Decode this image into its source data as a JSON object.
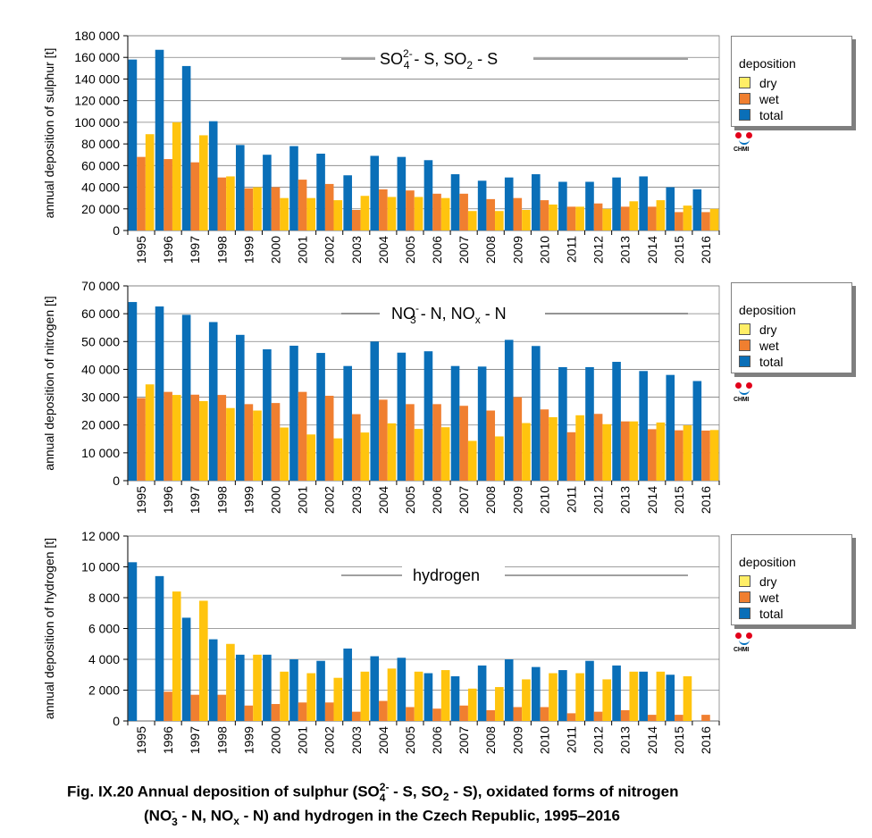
{
  "caption": {
    "line1_a": "Fig. IX.20  Annual deposition of sulphur (SO",
    "so4_sub": "4",
    "so4_sup": "2-",
    "line1_b": " - S, SO",
    "so2_sub": "2",
    "line1_c": " - S), oxidated forms of nitrogen",
    "line2_a": "(NO",
    "no3_sub": "3",
    "no3_sup": "-",
    "line2_b": " - N, NO",
    "nox_sub": "x",
    "line2_c": " - N) and hydrogen in the Czech Republic, 1995–2016"
  },
  "legend": {
    "title": "deposition",
    "items": [
      {
        "label": "dry",
        "color": "#ffee66"
      },
      {
        "label": "wet",
        "color": "#f07f30"
      },
      {
        "label": "total",
        "color": "#0a6fb8"
      }
    ]
  },
  "logo_text": "CHMI",
  "colors": {
    "total": "#0a6fb8",
    "wet": "#f07f30",
    "dry": "#ffc40e",
    "axis": "#000000",
    "grid": "#7f7f7f"
  },
  "chart_data": [
    {
      "type": "bar",
      "ylabel": "annual deposition of sulphur [t]",
      "title_parts": [
        "SO",
        "4",
        "2-",
        " - S, SO",
        "2",
        " - S"
      ],
      "ylim": [
        0,
        180000
      ],
      "yticks": [
        "0",
        "20 000",
        "40 000",
        "60 000",
        "80 000",
        "100 000",
        "120 000",
        "140 000",
        "160 000",
        "180 000"
      ],
      "grid": true,
      "legend_position": "right",
      "categories": [
        "1995",
        "1996",
        "1997",
        "1998",
        "1999",
        "2000",
        "2001",
        "2002",
        "2003",
        "2004",
        "2005",
        "2006",
        "2007",
        "2008",
        "2009",
        "2010",
        "2011",
        "2012",
        "2013",
        "2014",
        "2015",
        "2016"
      ],
      "series": [
        {
          "name": "total",
          "values": [
            158000,
            167000,
            152000,
            101000,
            79000,
            70000,
            78000,
            71000,
            51000,
            69000,
            68000,
            65000,
            52000,
            46000,
            49000,
            52000,
            45000,
            45000,
            49000,
            50000,
            40000,
            38000
          ]
        },
        {
          "name": "wet",
          "values": [
            68000,
            66000,
            63000,
            49000,
            39000,
            40000,
            47000,
            43000,
            19000,
            38000,
            37000,
            34000,
            34000,
            29000,
            30000,
            28000,
            22000,
            25000,
            22000,
            22000,
            17000,
            17000
          ]
        },
        {
          "name": "dry",
          "values": [
            89000,
            100000,
            88000,
            50000,
            40000,
            30000,
            30000,
            28000,
            32000,
            31000,
            31000,
            30000,
            18000,
            18000,
            19000,
            24000,
            22000,
            20000,
            27000,
            28000,
            23000,
            20000
          ]
        }
      ]
    },
    {
      "type": "bar",
      "ylabel": "annual deposition of nitrogen [t]",
      "title_parts": [
        "NO",
        "3",
        "-",
        " - N, NO",
        "x",
        " - N"
      ],
      "ylim": [
        0,
        70000
      ],
      "yticks": [
        "0",
        "10 000",
        "20 000",
        "30 000",
        "40 000",
        "50 000",
        "60 000",
        "70 000"
      ],
      "grid": true,
      "legend_position": "right",
      "categories": [
        "1995",
        "1996",
        "1997",
        "1998",
        "1999",
        "2000",
        "2001",
        "2002",
        "2003",
        "2004",
        "2005",
        "2006",
        "2007",
        "2008",
        "2009",
        "2010",
        "2011",
        "2012",
        "2013",
        "2014",
        "2015",
        "2016"
      ],
      "series": [
        {
          "name": "total",
          "values": [
            64200,
            62600,
            59600,
            57000,
            52400,
            47200,
            48500,
            45900,
            41200,
            50000,
            46000,
            46500,
            41200,
            41000,
            50600,
            48400,
            40800,
            40800,
            42700,
            39400,
            38000,
            35800
          ]
        },
        {
          "name": "wet",
          "values": [
            29700,
            31900,
            30900,
            30800,
            27500,
            27900,
            31900,
            30500,
            23900,
            29100,
            27500,
            27500,
            26900,
            25200,
            30000,
            25600,
            17400,
            24000,
            21300,
            18500,
            18100,
            18000
          ]
        },
        {
          "name": "dry",
          "values": [
            34600,
            30800,
            28600,
            26100,
            25200,
            19100,
            16600,
            15200,
            17300,
            20600,
            18600,
            19200,
            14300,
            15900,
            20700,
            22800,
            23500,
            20300,
            21300,
            20900,
            19900,
            18200
          ]
        }
      ]
    },
    {
      "type": "bar",
      "ylabel": "annual deposition of hydrogen [t]",
      "title_parts": [
        "hydrogen"
      ],
      "ylim": [
        0,
        12000
      ],
      "yticks": [
        "0",
        "2 000",
        "4 000",
        "6 000",
        "8 000",
        "10 000",
        "12 000"
      ],
      "grid": true,
      "legend_position": "right",
      "categories": [
        "1995",
        "1996",
        "1997",
        "1998",
        "1999",
        "2000",
        "2001",
        "2002",
        "2003",
        "2004",
        "2005",
        "2006",
        "2007",
        "2008",
        "2009",
        "2010",
        "2011",
        "2012",
        "2013",
        "2014",
        "2015",
        "2016"
      ],
      "series": [
        {
          "name": "total",
          "values": [
            10300,
            9400,
            6700,
            5300,
            4300,
            4300,
            4000,
            3900,
            4700,
            4200,
            4100,
            3100,
            2900,
            3600,
            4000,
            3500,
            3300,
            3900,
            3600,
            3200,
            3000,
            null
          ]
        },
        {
          "name": "wet",
          "values": [
            null,
            1900,
            1700,
            1700,
            1000,
            1100,
            1200,
            1200,
            600,
            1300,
            900,
            800,
            1000,
            700,
            900,
            900,
            500,
            600,
            700,
            400,
            400,
            400
          ]
        },
        {
          "name": "dry",
          "values": [
            null,
            8400,
            7800,
            5000,
            4300,
            3200,
            3100,
            2800,
            3200,
            3400,
            3200,
            3300,
            2100,
            2200,
            2700,
            3100,
            3100,
            2700,
            3200,
            3200,
            2900,
            null
          ]
        }
      ]
    }
  ]
}
